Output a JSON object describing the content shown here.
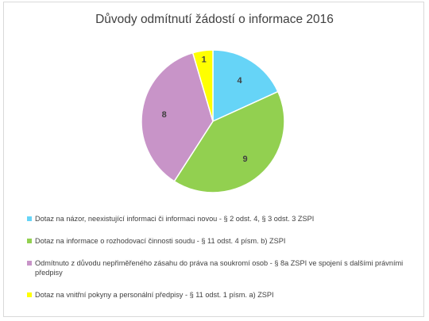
{
  "chart_data": {
    "type": "pie",
    "title": "Důvody odmítnutí žádostí o informace 2016",
    "slices": [
      {
        "label": "Dotaz na názor, neexistující informaci či informaci novou - § 2 odst. 4, § 3 odst. 3 ZSPI",
        "value": 4,
        "color": "#66d4f7"
      },
      {
        "label": "Dotaz na informace o rozhodovací činnosti soudu - § 11 odst. 4 písm. b) ZSPI",
        "value": 9,
        "color": "#92d050"
      },
      {
        "label": "Odmítnuto z důvodu nepřiměřeného zásahu do práva na soukromí osob - § 8a ZSPI ve spojení s dalšími právními předpisy",
        "value": 8,
        "color": "#c894c8"
      },
      {
        "label": "Dotaz na vnitřní pokyny a personální předpisy - § 11 odst. 1 písm. a) ZSPI",
        "value": 1,
        "color": "#ffff00"
      }
    ],
    "legend_position": "bottom"
  }
}
